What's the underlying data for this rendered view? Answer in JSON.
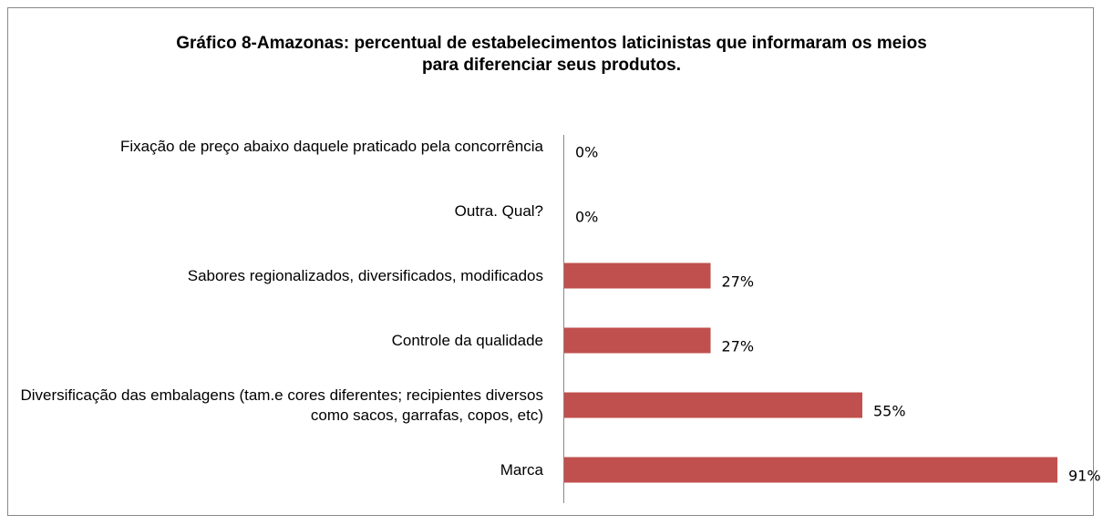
{
  "chart_data": {
    "type": "bar",
    "orientation": "horizontal",
    "title": "Gráfico 8-Amazonas: percentual de estabelecimentos laticinistas que informaram os meios para diferenciar seus produtos.",
    "categories": [
      "Fixação de preço abaixo daquele praticado pela concorrência",
      "Outra. Qual?",
      "Sabores regionalizados, diversificados, modificados",
      "Controle da qualidade",
      "Diversificação das embalagens (tam.e cores diferentes; recipientes diversos como sacos, garrafas, copos, etc)",
      "Marca"
    ],
    "values": [
      0,
      0,
      27,
      27,
      55,
      91
    ],
    "value_labels": [
      "0%",
      "0%",
      "27%",
      "27%",
      "55%",
      "91%"
    ],
    "color": "#c0504d"
  }
}
